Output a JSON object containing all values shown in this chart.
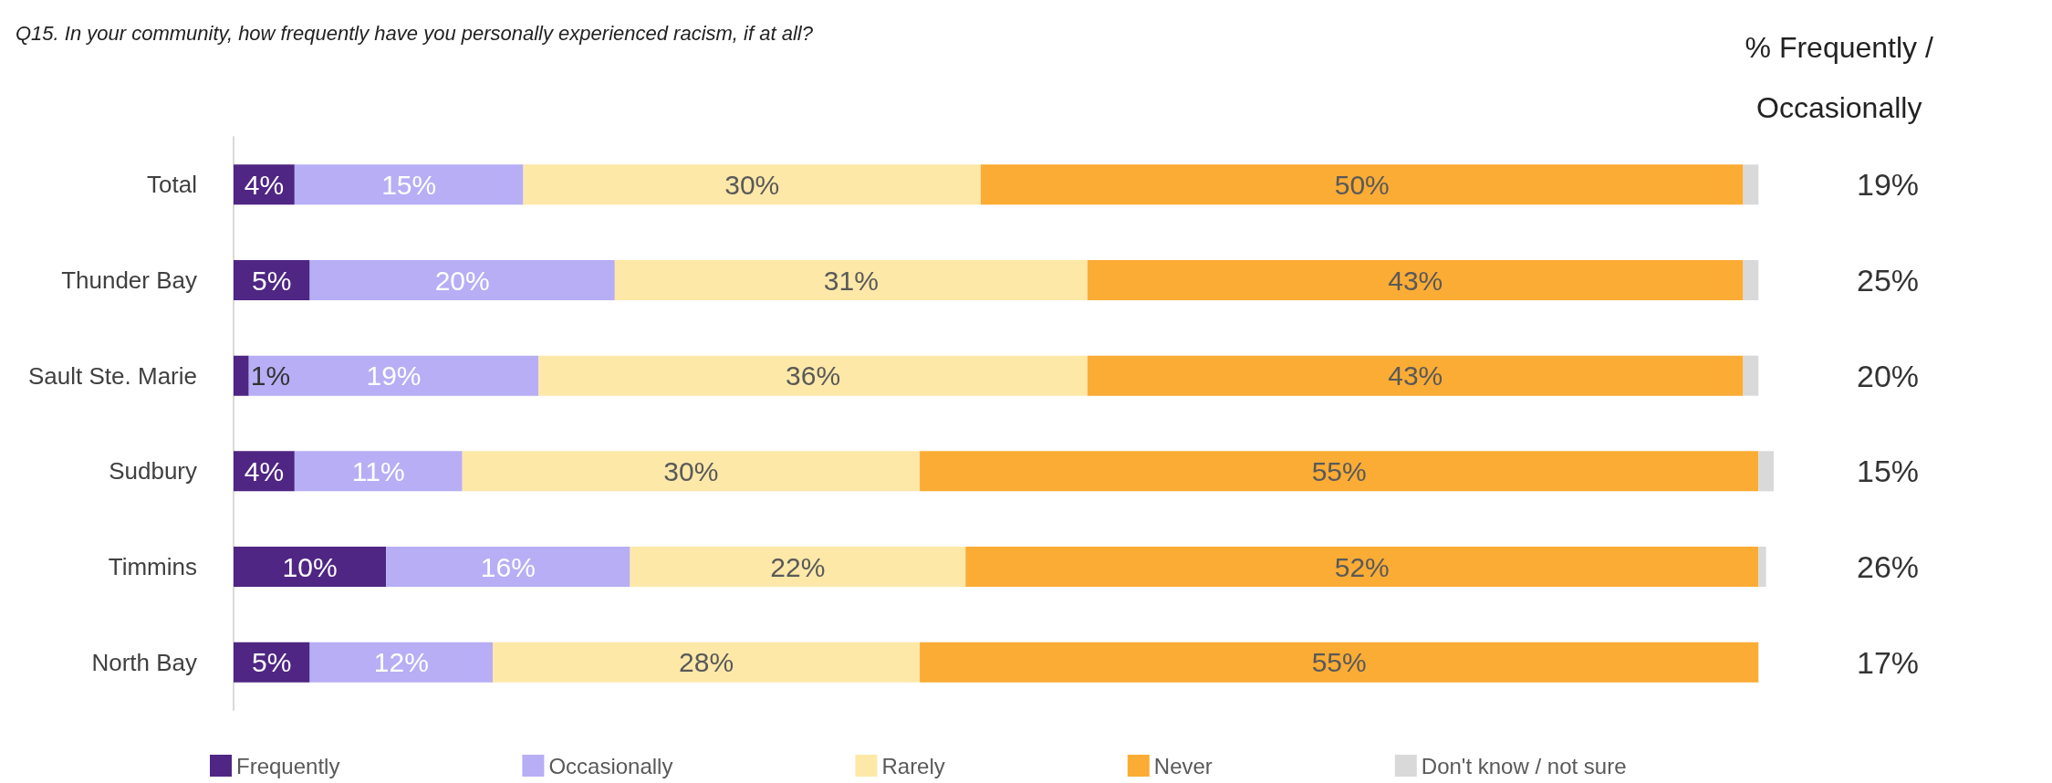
{
  "chart_data": {
    "type": "bar",
    "orientation": "horizontal",
    "stacked": true,
    "title": "Q15. In your community, how frequently have you personally experienced racism, if at all?",
    "categories": [
      "Total",
      "Thunder Bay",
      "Sault Ste. Marie",
      "Sudbury",
      "Timmins",
      "North Bay"
    ],
    "series": [
      {
        "name": "Frequently",
        "color": "#4f2683",
        "values": [
          4,
          5,
          1,
          4,
          10,
          5
        ],
        "value_labels": [
          "4%",
          "5%",
          "1%",
          "4%",
          "10%",
          "5%"
        ]
      },
      {
        "name": "Occasionally",
        "color": "#b7aef5",
        "values": [
          15,
          20,
          19,
          11,
          16,
          12
        ],
        "value_labels": [
          "15%",
          "20%",
          "19%",
          "11%",
          "16%",
          "12%"
        ]
      },
      {
        "name": "Rarely",
        "color": "#fde8a8",
        "values": [
          30,
          31,
          36,
          30,
          22,
          28
        ],
        "value_labels": [
          "30%",
          "31%",
          "36%",
          "30%",
          "22%",
          "28%"
        ]
      },
      {
        "name": "Never",
        "color": "#fbac35",
        "values": [
          50,
          43,
          43,
          55,
          52,
          55
        ],
        "value_labels": [
          "50%",
          "43%",
          "43%",
          "55%",
          "52%",
          "55%"
        ]
      },
      {
        "name": "Don't know / not sure",
        "color": "#d9d9d9",
        "values": [
          1,
          1,
          1,
          1,
          0.5,
          0
        ],
        "value_labels": [
          null,
          null,
          null,
          null,
          null,
          null
        ]
      }
    ],
    "legend": "bottom",
    "annotations": [
      "% Frequently /\nOccasionally",
      "19%",
      "25%",
      "20%",
      "15%",
      "26%",
      "17%"
    ]
  }
}
